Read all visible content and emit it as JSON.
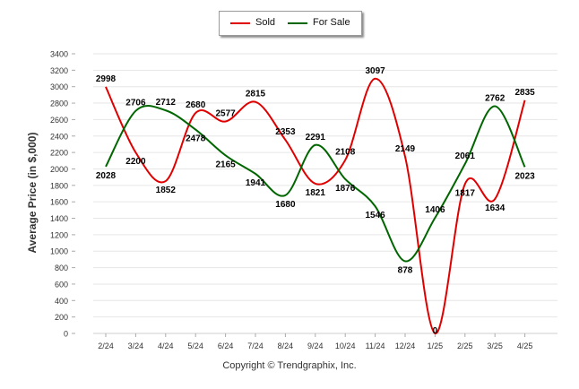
{
  "chart_data": {
    "type": "line",
    "categories": [
      "2/24",
      "3/24",
      "4/24",
      "5/24",
      "6/24",
      "7/24",
      "8/24",
      "9/24",
      "10/24",
      "11/24",
      "12/24",
      "1/25",
      "2/25",
      "3/25",
      "4/25"
    ],
    "series": [
      {
        "name": "Sold",
        "color": "#e00000",
        "values": [
          2998,
          2200,
          1852,
          2680,
          2577,
          2815,
          2353,
          1821,
          2108,
          3097,
          2149,
          0,
          1817,
          1634,
          2835
        ]
      },
      {
        "name": "For Sale",
        "color": "#006600",
        "values": [
          2028,
          2706,
          2712,
          2478,
          2165,
          1941,
          1680,
          2291,
          1876,
          1546,
          878,
          1406,
          2061,
          2762,
          2023
        ]
      }
    ],
    "ylabel": "Average Price (in $,000)",
    "ylim": [
      0,
      3400
    ],
    "yticks": [
      0,
      200,
      400,
      600,
      800,
      1000,
      1200,
      1400,
      1600,
      1800,
      2000,
      2200,
      2400,
      2600,
      2800,
      3000,
      3200,
      3400
    ],
    "grid": true,
    "legend_position": "top-center"
  },
  "legend": {
    "sold_label": "Sold",
    "forsale_label": "For Sale"
  },
  "footer": {
    "copyright": "Copyright © Trendgraphix, Inc."
  }
}
